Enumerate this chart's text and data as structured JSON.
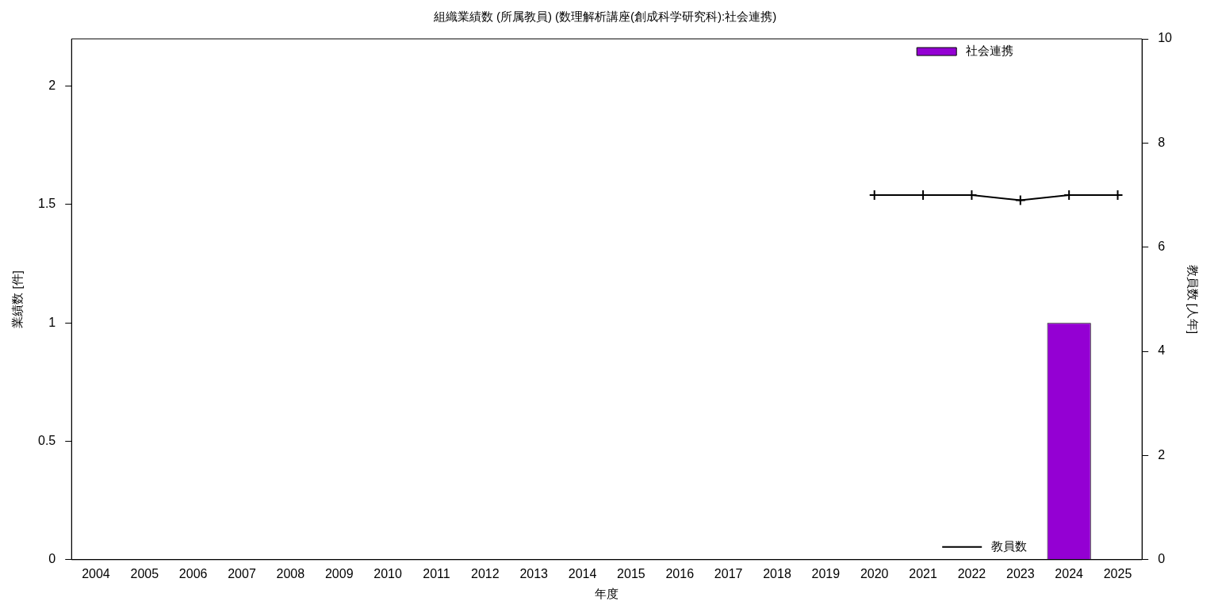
{
  "chart_data": {
    "type": "bar",
    "title": "組織業績数 (所属教員) (数理解析講座(創成科学研究科):社会連携)",
    "xlabel": "年度",
    "ylabel": "業績数 [件]",
    "y2label": "教員数 [人年]",
    "categories": [
      "2004",
      "2005",
      "2006",
      "2007",
      "2008",
      "2009",
      "2010",
      "2011",
      "2012",
      "2013",
      "2014",
      "2015",
      "2016",
      "2017",
      "2018",
      "2019",
      "2020",
      "2021",
      "2022",
      "2023",
      "2024",
      "2025"
    ],
    "series": [
      {
        "name": "社会連携",
        "color": "#9400d3",
        "values": [
          0,
          0,
          0,
          0,
          0,
          0,
          0,
          0,
          0,
          0,
          0,
          0,
          0,
          0,
          0,
          0,
          0,
          0,
          0,
          0,
          1,
          0
        ]
      },
      {
        "name": "教員数",
        "type": "line",
        "axis": "y2",
        "color": "#000000",
        "values": [
          null,
          null,
          null,
          null,
          null,
          null,
          null,
          null,
          null,
          null,
          null,
          null,
          null,
          null,
          null,
          null,
          7,
          7,
          7,
          6.9,
          7,
          7
        ]
      }
    ],
    "ylim": [
      0,
      2.2
    ],
    "yticks": [
      0,
      0.5,
      1,
      1.5,
      2
    ],
    "y2lim": [
      0,
      10
    ],
    "y2ticks": [
      0,
      2,
      4,
      6,
      8,
      10
    ],
    "grid": false,
    "legend": "right",
    "marker": "cross",
    "line_style": "solid"
  }
}
